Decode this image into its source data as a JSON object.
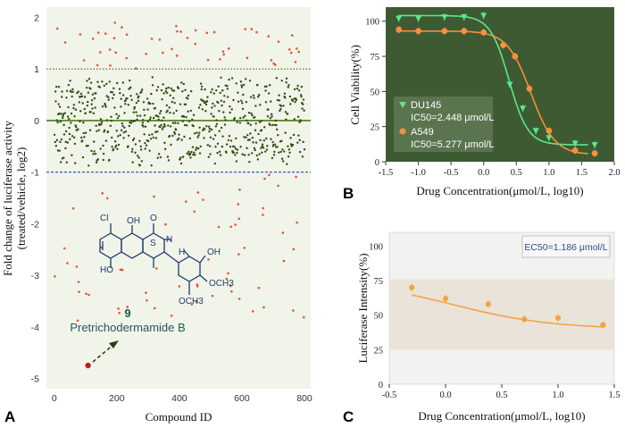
{
  "chart_data": [
    {
      "panel": "A",
      "type": "scatter",
      "xlabel": "Compound ID",
      "ylabel_line1": "Fold change of luciferase activity",
      "ylabel_line2": "(treated/vehicle, log2)",
      "xlim": [
        -25,
        820
      ],
      "ylim": [
        -5.2,
        2.2
      ],
      "xticks": [
        0,
        200,
        400,
        600,
        800
      ],
      "yticks": [
        2,
        1,
        0,
        -1,
        -2,
        -3,
        -4,
        -5
      ],
      "grid": false,
      "reference_lines": [
        {
          "y": 1,
          "style": "dotted",
          "color": "#5d7a1f"
        },
        {
          "y": 0,
          "style": "solid",
          "color": "#4f7a1a"
        },
        {
          "y": -1,
          "style": "dashed",
          "color": "#2f5fb3"
        }
      ],
      "n_compounds": 800,
      "point_color_mid": "#2f4d12",
      "point_color_outlier": "#e2533a",
      "highlight": {
        "x": 108,
        "y": -4.75,
        "color": "#b3261e"
      },
      "compound_label": "9",
      "compound_name": "Pretrichodermamide B",
      "structure_labels": [
        "Cl",
        "OH",
        "O",
        "N",
        "S",
        "H",
        "HO",
        "OH",
        "OCH3",
        "OCH3"
      ]
    },
    {
      "panel": "B",
      "type": "line",
      "xlabel": "Drug Concentration(μmol/L, log10)",
      "ylabel": "Cell Viability(%)",
      "xlim": [
        -1.5,
        2.0
      ],
      "ylim": [
        0,
        110
      ],
      "xticks": [
        -1.5,
        -1.0,
        -0.5,
        0.0,
        0.5,
        1.0,
        1.5,
        2.0
      ],
      "yticks": [
        0,
        25,
        50,
        75,
        100
      ],
      "background": "#3d5a33",
      "series": [
        {
          "name": "DU145",
          "ic50_text": "IC50=2.448 μmol/L",
          "color": "#5be88a",
          "marker": "triangle-down",
          "x": [
            -1.3,
            -1.0,
            -0.6,
            -0.3,
            0.0,
            0.4,
            0.6,
            0.8,
            1.0,
            1.4,
            1.7
          ],
          "y": [
            102,
            102,
            103,
            103,
            104,
            55,
            38,
            22,
            17,
            13,
            12
          ],
          "fit": {
            "top": 104,
            "bottom": 12,
            "logIC50": 0.389,
            "hill": 3.0
          }
        },
        {
          "name": "A549",
          "ic50_text": "IC50=5.277 μmol/L",
          "color": "#f4913a",
          "marker": "circle",
          "x": [
            -1.3,
            -1.0,
            -0.6,
            -0.3,
            0.0,
            0.3,
            0.48,
            0.7,
            1.0,
            1.4,
            1.7
          ],
          "y": [
            94,
            93,
            93,
            93,
            92,
            83,
            75,
            52,
            22,
            8,
            6
          ],
          "fit": {
            "top": 93,
            "bottom": 5,
            "logIC50": 0.722,
            "hill": 2.4
          }
        }
      ],
      "legend_placement": "lower-left"
    },
    {
      "panel": "C",
      "type": "line",
      "xlabel": "Drug Concentration(μmol/L, log10)",
      "ylabel": "Luciferase Intensity(%)",
      "xlim": [
        -0.5,
        1.5
      ],
      "ylim": [
        0,
        110
      ],
      "xticks": [
        -0.5,
        0.0,
        0.5,
        1.0,
        1.5
      ],
      "yticks": [
        0,
        25,
        50,
        75,
        100
      ],
      "band": [
        25,
        76
      ],
      "series": [
        {
          "name": "",
          "color": "#f4a23a",
          "x": [
            -0.3,
            0.0,
            0.38,
            0.7,
            1.0,
            1.4
          ],
          "y": [
            70,
            62,
            58,
            47,
            48,
            43
          ],
          "fit": {
            "top": 75,
            "bottom": 40,
            "logIC50": 0.074,
            "hill": 1.0
          }
        }
      ],
      "ec50_text": "EC50=1.186 μmol/L",
      "legend_placement": "top-right"
    }
  ]
}
